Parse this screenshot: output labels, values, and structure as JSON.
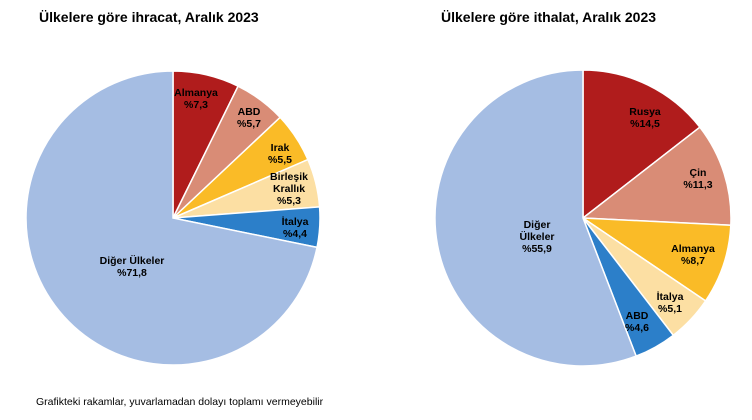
{
  "chart_data": [
    {
      "type": "pie",
      "title": "Ülkelere göre ihracat, Aralık 2023",
      "slices": [
        {
          "label": [
            "Almanya"
          ],
          "value_label": "%7,3",
          "value": 7.3,
          "color": "#B01C1C"
        },
        {
          "label": [
            "ABD"
          ],
          "value_label": "%5,7",
          "value": 5.7,
          "color": "#D98C76"
        },
        {
          "label": [
            "Irak"
          ],
          "value_label": "%5,5",
          "value": 5.5,
          "color": "#FABB27"
        },
        {
          "label": [
            "Birleşik",
            "Krallık"
          ],
          "value_label": "%5,3",
          "value": 5.3,
          "color": "#FCDFA3"
        },
        {
          "label": [
            "İtalya"
          ],
          "value_label": "%4,4",
          "value": 4.4,
          "color": "#2C7FC9"
        },
        {
          "label": [
            "Diğer Ülkeler"
          ],
          "value_label": "%71,8",
          "value": 71.8,
          "color": "#A5BDE3"
        }
      ]
    },
    {
      "type": "pie",
      "title": "Ülkelere göre ithalat, Aralık 2023",
      "slices": [
        {
          "label": [
            "Rusya"
          ],
          "value_label": "%14,5",
          "value": 14.5,
          "color": "#B01C1C"
        },
        {
          "label": [
            "Çin"
          ],
          "value_label": "%11,3",
          "value": 11.3,
          "color": "#D98C76"
        },
        {
          "label": [
            "Almanya"
          ],
          "value_label": "%8,7",
          "value": 8.7,
          "color": "#FABB27"
        },
        {
          "label": [
            "İtalya"
          ],
          "value_label": "%5,1",
          "value": 5.1,
          "color": "#FCDFA3"
        },
        {
          "label": [
            "ABD"
          ],
          "value_label": "%4,6",
          "value": 4.6,
          "color": "#2C7FC9"
        },
        {
          "label": [
            "Diğer",
            "Ülkeler"
          ],
          "value_label": "%55,9",
          "value": 55.9,
          "color": "#A5BDE3"
        }
      ]
    }
  ],
  "footnote": "Grafikteki rakamlar, yuvarlamadan dolayı toplamı vermeyebilir"
}
